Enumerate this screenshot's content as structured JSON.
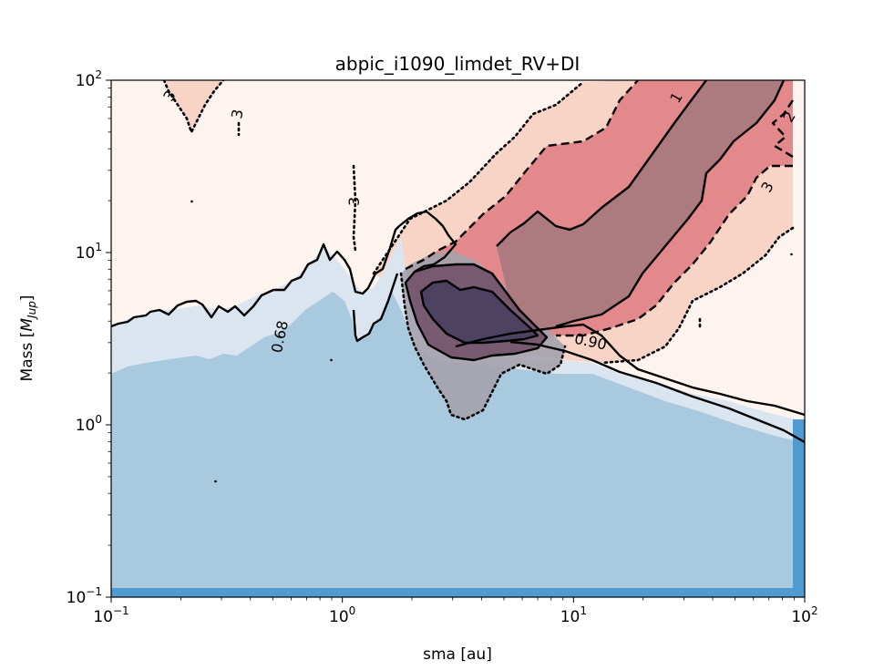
{
  "chart_data": {
    "type": "contour",
    "title": "abpic_i1090_limdet_RV+DI",
    "xlabel": "sma [au]",
    "ylabel_main": "Mass [",
    "ylabel_sym": "M",
    "ylabel_sub": "Jup",
    "ylabel_end": "]",
    "xscale": "log",
    "yscale": "log",
    "xlim": [
      0.1,
      100
    ],
    "ylim": [
      0.1,
      100
    ],
    "x_ticks": [
      {
        "value": 0.1,
        "base": "10",
        "exp": "−1"
      },
      {
        "value": 1,
        "base": "10",
        "exp": "0"
      },
      {
        "value": 10,
        "base": "10",
        "exp": "1"
      },
      {
        "value": 100,
        "base": "10",
        "exp": "2"
      }
    ],
    "y_ticks": [
      {
        "value": 0.1,
        "base": "10",
        "exp": "−1"
      },
      {
        "value": 1,
        "base": "10",
        "exp": "0"
      },
      {
        "value": 10,
        "base": "10",
        "exp": "1"
      },
      {
        "value": 100,
        "base": "10",
        "exp": "2"
      }
    ],
    "grid": false,
    "colors": {
      "exclusion_dark": "#4f9bd0",
      "exclusion_068": "#a9c9df",
      "exclusion_090": "#dbe5ef",
      "posterior_1sigma": "#ad7a80",
      "posterior_2sigma": "#e4898b",
      "posterior_3sigma": "#f8d4c6",
      "posterior_bg": "#fdf4ef",
      "rv_inner": "#4e4262",
      "rv_mid": "#6f4c66",
      "rv_outer": "#a4a2ac"
    },
    "detection_limit_068": {
      "label": "0.68",
      "x": [
        0.1,
        0.12,
        0.15,
        0.2,
        0.25,
        0.3,
        0.4,
        0.5,
        0.6,
        0.7,
        0.8,
        0.9,
        1.0,
        1.1,
        1.3,
        1.5,
        1.7
      ],
      "y": [
        3.6,
        3.9,
        4.3,
        4.8,
        4.5,
        4.6,
        5.0,
        5.8,
        6.5,
        7.6,
        10.5,
        9.5,
        8.0,
        3.0,
        3.7,
        8.0,
        13.5
      ]
    },
    "detection_limit_090": {
      "label": "0.90",
      "x": [
        4.0,
        6.0,
        10.0,
        15.0,
        20.0,
        30.0,
        50.0,
        70.0,
        100.0
      ],
      "y": [
        3.2,
        3.4,
        2.8,
        2.2,
        1.8,
        1.55,
        1.35,
        1.2,
        1.1
      ]
    },
    "posterior_contour_labels": [
      "3",
      "3",
      "3",
      "3",
      "1",
      "2"
    ],
    "posterior_1sigma": {
      "x": [
        4.2,
        4.8,
        6,
        8,
        12,
        20,
        30,
        45,
        60,
        80,
        90,
        80,
        60,
        45,
        30,
        20,
        12,
        8,
        6,
        4.8,
        4.2
      ],
      "y": [
        8.0,
        6.0,
        4.3,
        4.0,
        4.3,
        5.5,
        7.0,
        10.0,
        15.0,
        30.0,
        100,
        100,
        80,
        45,
        28,
        20,
        16,
        13.5,
        11,
        9.5,
        8.0
      ]
    },
    "posterior_2sigma": {
      "x": [
        2.3,
        3.0,
        4.0,
        6,
        10,
        16,
        25,
        40,
        60,
        75,
        90,
        90,
        75,
        65,
        50,
        40,
        30,
        25,
        20,
        15,
        10,
        7,
        5,
        3.5,
        2.6,
        2.3
      ],
      "y": [
        6.0,
        9.0,
        11.5,
        12.5,
        11.0,
        8.0,
        4.5,
        6.0,
        10.5,
        25.0,
        30.0,
        100,
        100,
        90,
        70,
        60,
        58,
        48,
        42,
        35,
        30,
        20,
        18,
        13,
        8.0,
        6.0
      ]
    },
    "rv_contour_inner": {
      "x": [
        2.5,
        2.8,
        3.3,
        4.0,
        4.8,
        5.5,
        6.3,
        5.2,
        4.2,
        3.2,
        2.6,
        2.5
      ],
      "y": [
        4.4,
        5.5,
        6.3,
        6.4,
        5.6,
        4.4,
        3.4,
        3.3,
        3.1,
        3.5,
        4.0,
        4.4
      ]
    }
  }
}
